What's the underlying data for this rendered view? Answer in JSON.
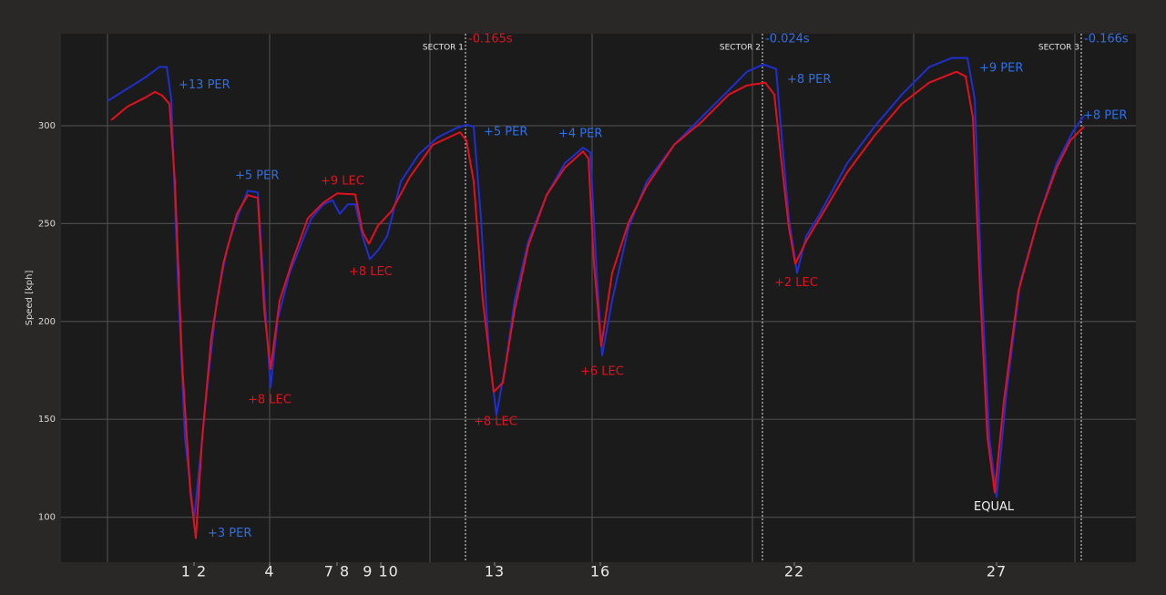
{
  "chart_data": {
    "type": "line",
    "y_label": "Speed [kph]",
    "xlim": [
      0,
      1180
    ],
    "ylim": [
      77,
      347
    ],
    "yticks": [
      100,
      150,
      200,
      250,
      300
    ],
    "xticks": [
      {
        "value": 146,
        "label": "1 2"
      },
      {
        "value": 229,
        "label": "4"
      },
      {
        "value": 303,
        "label": "7 8"
      },
      {
        "value": 351,
        "label": "9 10"
      },
      {
        "value": 476,
        "label": "13"
      },
      {
        "value": 592,
        "label": "16"
      },
      {
        "value": 805,
        "label": "22"
      },
      {
        "value": 1027,
        "label": "27"
      }
    ],
    "xgrid": [
      51,
      229,
      405,
      583,
      759,
      936,
      1113
    ],
    "grid": true,
    "series": [
      {
        "color": "#1f2fd0",
        "x": [
          51,
          73,
          93,
          108,
          116,
          121,
          128,
          136,
          146,
          153,
          161,
          171,
          183,
          195,
          205,
          216,
          223,
          230,
          238,
          251,
          263,
          275,
          288,
          298,
          306,
          315,
          323,
          331,
          339,
          348,
          358,
          373,
          393,
          413,
          433,
          445,
          453,
          461,
          470,
          478,
          488,
          498,
          513,
          533,
          553,
          573,
          581,
          588,
          594,
          605,
          623,
          643,
          673,
          703,
          733,
          753,
          771,
          785,
          791,
          799,
          808,
          818,
          833,
          863,
          893,
          923,
          953,
          978,
          995,
          1003,
          1010,
          1019,
          1027,
          1038,
          1053,
          1073,
          1093,
          1111,
          1123
        ],
        "values": [
          312.6,
          319,
          324.8,
          330,
          330,
          313.6,
          224.8,
          140.7,
          98.6,
          131,
          168.7,
          210.7,
          238.8,
          255,
          266.8,
          265.9,
          215.4,
          166.4,
          201.4,
          224.8,
          238.8,
          252.8,
          259.8,
          262,
          255,
          259.8,
          259.8,
          243.5,
          231.8,
          236.4,
          243.5,
          271.5,
          285.5,
          293.9,
          298.6,
          300.5,
          299.5,
          252.8,
          182.7,
          152.3,
          178,
          210.7,
          241,
          264.5,
          280.8,
          288.8,
          286.4,
          224.8,
          182.7,
          210.7,
          248.1,
          271.5,
          290.2,
          304.2,
          318.2,
          327.6,
          331.3,
          329,
          294.9,
          252.8,
          224.8,
          243.5,
          255,
          280.8,
          299.5,
          315.9,
          330,
          334.6,
          334.6,
          313.6,
          224.8,
          140.7,
          110.3,
          164,
          220,
          252.8,
          280.8,
          297.2,
          305.1
        ]
      },
      {
        "color": "#e3101e",
        "x": [
          55,
          73,
          93,
          103,
          111,
          119,
          125,
          133,
          142,
          148,
          155,
          165,
          178,
          193,
          205,
          216,
          223,
          230,
          240,
          253,
          271,
          288,
          303,
          323,
          331,
          338,
          348,
          363,
          383,
          408,
          438,
          445,
          453,
          463,
          475,
          485,
          498,
          513,
          533,
          553,
          573,
          579,
          585,
          593,
          605,
          623,
          643,
          673,
          703,
          733,
          753,
          773,
          783,
          791,
          799,
          806,
          818,
          833,
          863,
          893,
          923,
          953,
          983,
          993,
          1001,
          1009,
          1017,
          1025,
          1035,
          1051,
          1073,
          1093,
          1108,
          1123
        ],
        "values": [
          302.8,
          309.8,
          314.5,
          317.3,
          315.4,
          311.2,
          271.5,
          178,
          112.6,
          89.3,
          140.7,
          192,
          229.4,
          255,
          264.5,
          263.1,
          206,
          175.7,
          210.7,
          229.4,
          252.8,
          260.7,
          265.4,
          264.9,
          245.8,
          239.7,
          249,
          256.5,
          273.8,
          290.2,
          296.7,
          292.5,
          271.5,
          210.7,
          164,
          168.7,
          206,
          238.8,
          264.5,
          278.5,
          286.9,
          283.2,
          229.4,
          187.4,
          224.8,
          250.5,
          269.2,
          290.2,
          301.9,
          315.9,
          320.6,
          322,
          315.9,
          280.8,
          248.1,
          229.4,
          241.1,
          252.8,
          276.2,
          294.9,
          311.2,
          322,
          327.6,
          325.2,
          304.2,
          215.4,
          140.7,
          112.6,
          159.3,
          215.4,
          252.8,
          278.5,
          292.5,
          299.5
        ]
      }
    ],
    "sectors": [
      {
        "x": 444,
        "label": "SECTOR 1",
        "delta": "-0.165s",
        "color": "#e3101e"
      },
      {
        "x": 770,
        "label": "SECTOR 2",
        "delta": "-0.024s",
        "color": "#2f6fe6"
      },
      {
        "x": 1120,
        "label": "SECTOR 3",
        "delta": "-0.166s",
        "color": "#2f6fe6"
      }
    ],
    "annotations": [
      {
        "text": "+13 PER",
        "x": 129,
        "y": 320.6,
        "color": "#2f6fe6"
      },
      {
        "text": "+3 PER",
        "x": 161,
        "y": 91.6,
        "color": "#2f6fe6"
      },
      {
        "text": "+5 PER",
        "x": 191,
        "y": 274.3,
        "color": "#2f6fe6"
      },
      {
        "text": "+8 LEC",
        "x": 205,
        "y": 159.8,
        "color": "#e3101e"
      },
      {
        "text": "+9 LEC",
        "x": 285,
        "y": 271.5,
        "color": "#e3101e"
      },
      {
        "text": "+8 LEC",
        "x": 316,
        "y": 225.2,
        "color": "#e3101e"
      },
      {
        "text": "+5 PER",
        "x": 464,
        "y": 296.7,
        "color": "#2f6fe6"
      },
      {
        "text": "+8 LEC",
        "x": 453,
        "y": 148.6,
        "color": "#e3101e"
      },
      {
        "text": "+4 PER",
        "x": 546,
        "y": 295.8,
        "color": "#2f6fe6"
      },
      {
        "text": "+6 LEC",
        "x": 570,
        "y": 174.3,
        "color": "#e3101e"
      },
      {
        "text": "+8 PER",
        "x": 797,
        "y": 323.4,
        "color": "#2f6fe6"
      },
      {
        "text": "+2 LEC",
        "x": 783,
        "y": 219.6,
        "color": "#e3101e"
      },
      {
        "text": "+9 PER",
        "x": 1008,
        "y": 329.4,
        "color": "#2f6fe6"
      },
      {
        "text": "EQUAL",
        "x": 1002,
        "y": 105.1,
        "color": "#f0f0f0"
      },
      {
        "text": "+8 PER",
        "x": 1122,
        "y": 305.1,
        "color": "#2f6fe6"
      }
    ]
  }
}
